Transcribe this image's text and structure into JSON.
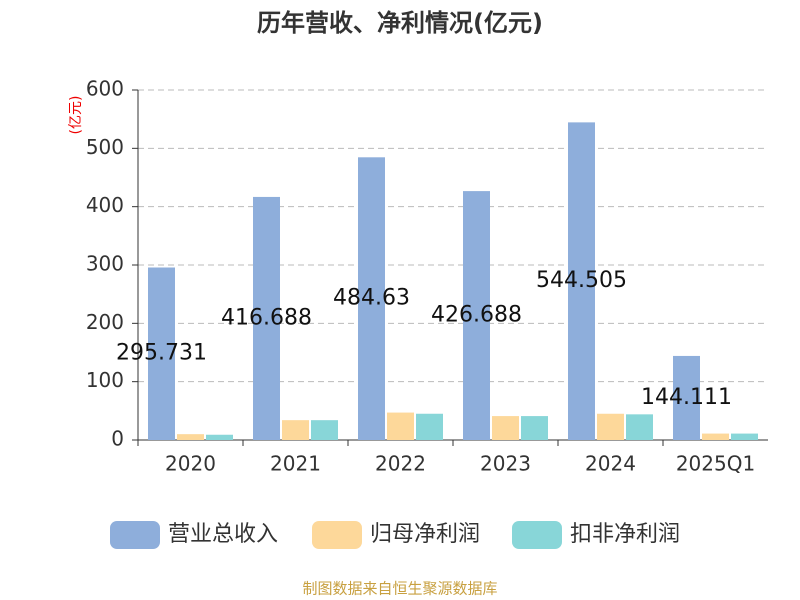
{
  "chart_data": {
    "type": "bar",
    "title": "历年营收、净利情况(亿元)",
    "y_label": "(亿元)",
    "categories": [
      "2020",
      "2021",
      "2022",
      "2023",
      "2024",
      "2025Q1"
    ],
    "series": [
      {
        "name": "营业总收入",
        "color": "#8eaedb",
        "values": [
          295.731,
          416.688,
          484.63,
          426.688,
          544.505,
          144.111
        ],
        "show_labels": true
      },
      {
        "name": "归母净利润",
        "color": "#fdd89a",
        "values": [
          10,
          34,
          47,
          41,
          45,
          11
        ]
      },
      {
        "name": "扣非净利润",
        "color": "#88d6d8",
        "values": [
          9,
          34,
          45,
          41,
          44,
          11
        ]
      }
    ],
    "ylim": [
      0,
      600
    ],
    "yticks": [
      0,
      100,
      200,
      300,
      400,
      500,
      600
    ],
    "grid": true,
    "legend": "bottom",
    "source": "制图数据来自恒生聚源数据库"
  }
}
